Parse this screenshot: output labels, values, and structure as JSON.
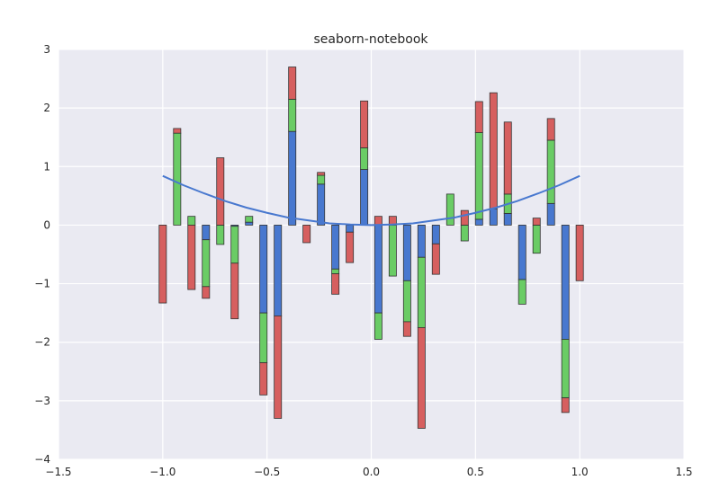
{
  "chart_data": {
    "type": "bar",
    "title": "seaborn-notebook",
    "xlabel": "",
    "ylabel": "",
    "xlim": [
      -1.5,
      1.5
    ],
    "ylim": [
      -4,
      3
    ],
    "xticks": [
      -1.5,
      -1.0,
      -0.5,
      0.0,
      0.5,
      1.0,
      1.5
    ],
    "yticks": [
      -4,
      -3,
      -2,
      -1,
      0,
      1,
      2,
      3
    ],
    "xtick_labels": [
      "−1.5",
      "−1.0",
      "−0.5",
      "0.0",
      "0.5",
      "1.0",
      "1.5"
    ],
    "ytick_labels": [
      "−4",
      "−3",
      "−2",
      "−1",
      "0",
      "1",
      "2",
      "3"
    ],
    "grid": true,
    "background": "#eaeaf2",
    "stacked": true,
    "bar_width": 0.035,
    "x": [
      -1.0,
      -0.931,
      -0.862,
      -0.793,
      -0.724,
      -0.655,
      -0.586,
      -0.517,
      -0.448,
      -0.379,
      -0.31,
      -0.241,
      -0.172,
      -0.103,
      -0.034,
      0.034,
      0.103,
      0.172,
      0.241,
      0.31,
      0.379,
      0.448,
      0.517,
      0.586,
      0.655,
      0.724,
      0.793,
      0.862,
      0.931,
      1.0
    ],
    "series": [
      {
        "color": "#4878cf",
        "values": [
          0,
          0,
          0,
          -0.25,
          0,
          -0.02,
          0.05,
          -1.5,
          -1.55,
          1.6,
          0,
          0.7,
          -0.75,
          -0.12,
          0.95,
          -1.5,
          0,
          -0.95,
          -0.55,
          -0.32,
          0,
          0,
          0.1,
          0.28,
          0.2,
          -0.93,
          0,
          0.37,
          -1.95,
          0
        ]
      },
      {
        "color": "#6acc65",
        "values": [
          0,
          1.57,
          0.15,
          -0.8,
          -0.33,
          -0.63,
          0.1,
          -0.85,
          0,
          0.55,
          0,
          0.15,
          -0.08,
          0,
          0.37,
          -0.45,
          -0.87,
          -0.7,
          -1.2,
          0,
          0.53,
          -0.27,
          1.48,
          0,
          0.33,
          -0.42,
          -0.48,
          1.08,
          -1.0,
          0
        ]
      },
      {
        "color": "#d65f5f",
        "values": [
          -1.33,
          0.08,
          -1.1,
          -0.2,
          1.15,
          -0.95,
          0,
          -0.55,
          -1.75,
          0.55,
          -0.3,
          0.05,
          -0.35,
          -0.52,
          0.8,
          0.15,
          0.15,
          -0.25,
          -1.72,
          -0.52,
          0,
          0.25,
          0.53,
          1.98,
          1.23,
          0,
          0.12,
          0.37,
          -0.25,
          -0.95
        ]
      }
    ],
    "curve": {
      "color": "#4878cf",
      "x": [
        -1.0,
        -0.9,
        -0.8,
        -0.7,
        -0.6,
        -0.5,
        -0.4,
        -0.3,
        -0.2,
        -0.1,
        0.0,
        0.1,
        0.2,
        0.3,
        0.4,
        0.5,
        0.6,
        0.7,
        0.8,
        0.9,
        1.0
      ],
      "y": [
        0.84,
        0.68,
        0.54,
        0.41,
        0.3,
        0.21,
        0.13,
        0.08,
        0.03,
        0.01,
        0.0,
        0.01,
        0.03,
        0.08,
        0.13,
        0.21,
        0.3,
        0.41,
        0.54,
        0.68,
        0.84
      ]
    }
  }
}
